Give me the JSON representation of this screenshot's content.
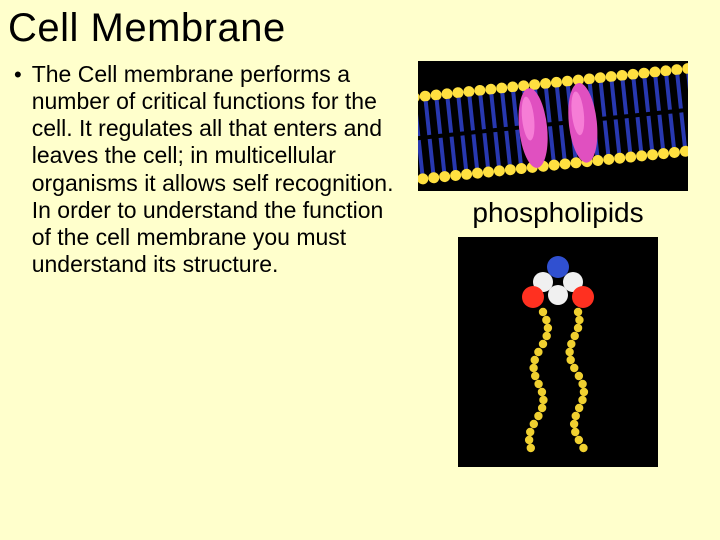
{
  "title": "Cell Membrane",
  "bullet": {
    "marker": "•",
    "text": "The Cell membrane performs a number of critical functions for the cell. It regulates all that enters and leaves the cell; in multicellular organisms it allows self recognition. In order to understand the function of the cell membrane you must understand its structure."
  },
  "caption": "phospholipids",
  "background_color": "#ffffcc",
  "title_font": "Comic Sans MS",
  "body_font": "Arial",
  "membrane": {
    "head_color": "#ffe040",
    "tail_color": "#2838b0",
    "protein_color": "#e050c0",
    "protein_highlight": "#ff90e0",
    "background": "#000000"
  },
  "molecule": {
    "head_red": "#ff3020",
    "head_white": "#f0f0f0",
    "head_blue": "#3050d0",
    "chain_yellow": "#f0d030",
    "background": "#000000"
  }
}
